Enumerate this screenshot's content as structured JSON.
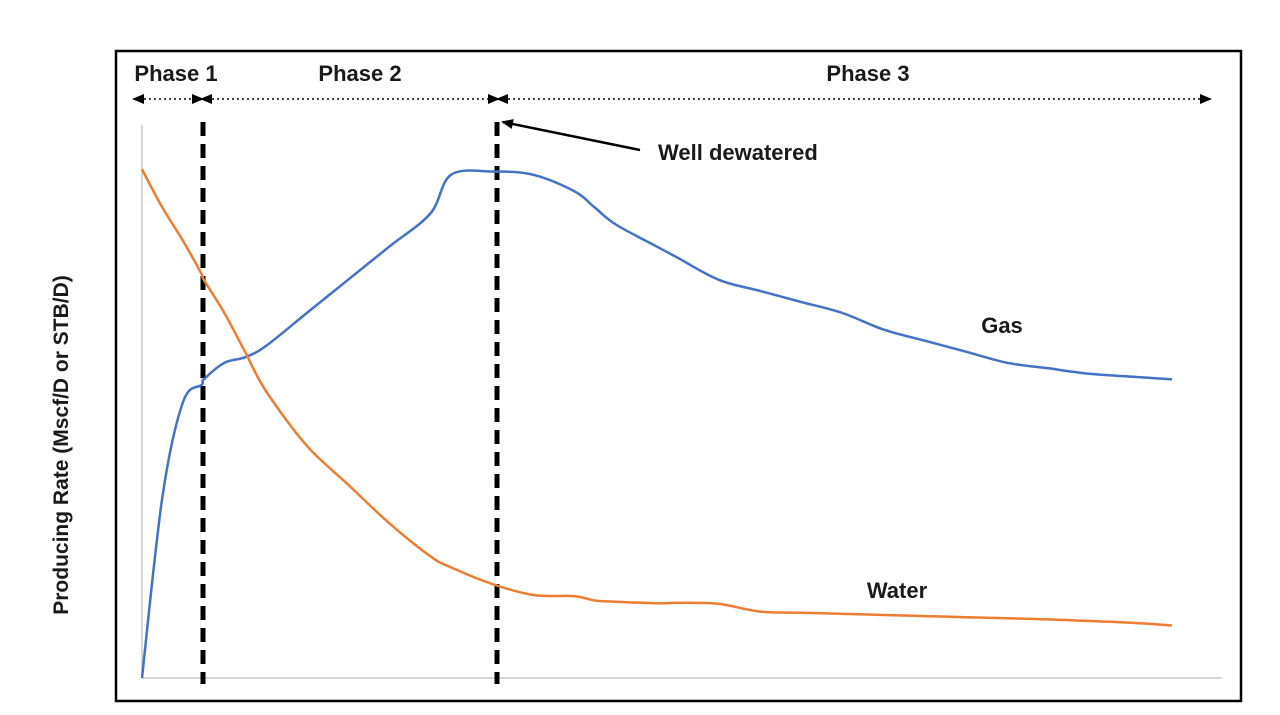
{
  "chart_data": {
    "type": "line",
    "title": "",
    "xlabel": "",
    "ylabel": "Producing Rate (Mscf/D or STB/D)",
    "xlim": [
      0,
      100
    ],
    "ylim": [
      0,
      100
    ],
    "grid": false,
    "legend": "none",
    "x": [
      0,
      2,
      4,
      5.8,
      6,
      8,
      10,
      12,
      16,
      20,
      24,
      28,
      30,
      34,
      38,
      42,
      44,
      46,
      50,
      52,
      56,
      60,
      64,
      68,
      72,
      76,
      80,
      84,
      88,
      92,
      96,
      100
    ],
    "series": [
      {
        "name": "Gas",
        "color": "#4472C4",
        "label_text": "Gas",
        "values": [
          0,
          33,
          50,
          53,
          54,
          57,
          58,
          60,
          66,
          72,
          78,
          84,
          91,
          91.6,
          91,
          88,
          85,
          82,
          78,
          76,
          72,
          70,
          68,
          66,
          63,
          61,
          59,
          57,
          56,
          55,
          54.5,
          54
        ]
      },
      {
        "name": "Water",
        "color": "#ED7D31",
        "label_text": "Water",
        "values": [
          92,
          85,
          79,
          73,
          72,
          66,
          59,
          52,
          42,
          35,
          28,
          22,
          20,
          17,
          15,
          14.8,
          14,
          13.8,
          13.5,
          13.6,
          13.4,
          12,
          11.8,
          11.6,
          11.4,
          11.2,
          11,
          10.8,
          10.6,
          10.3,
          10,
          9.5
        ]
      }
    ],
    "phases": [
      {
        "label": "Phase 1",
        "x_start": 0,
        "x_end": 6
      },
      {
        "label": "Phase 2",
        "x_start": 6,
        "x_end": 34.5
      },
      {
        "label": "Phase 3",
        "x_start": 34.5,
        "x_end": 104
      }
    ],
    "dividers_x": [
      6,
      34.5
    ],
    "annotations": [
      {
        "text": "Well dewatered",
        "points_to_x": 34.5
      }
    ],
    "colors": {
      "gas": "#4472C4",
      "water": "#ED7D31",
      "frame": "#000000"
    }
  }
}
